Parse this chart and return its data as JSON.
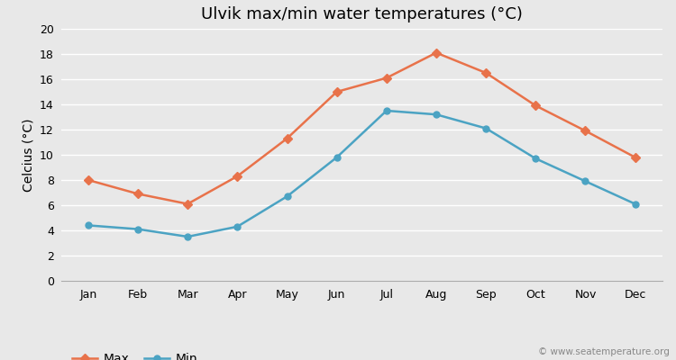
{
  "title": "Ulvik max/min water temperatures (°C)",
  "xlabel": "",
  "ylabel": "Celcius (°C)",
  "months": [
    "Jan",
    "Feb",
    "Mar",
    "Apr",
    "May",
    "Jun",
    "Jul",
    "Aug",
    "Sep",
    "Oct",
    "Nov",
    "Dec"
  ],
  "max_values": [
    8.0,
    6.9,
    6.1,
    8.3,
    11.3,
    15.0,
    16.1,
    18.1,
    16.5,
    13.9,
    11.9,
    9.8
  ],
  "min_values": [
    4.4,
    4.1,
    3.5,
    4.3,
    6.7,
    9.8,
    13.5,
    13.2,
    12.1,
    9.7,
    7.9,
    6.1
  ],
  "max_color": "#E8724A",
  "min_color": "#4BA3C3",
  "ylim": [
    0,
    20
  ],
  "yticks": [
    0,
    2,
    4,
    6,
    8,
    10,
    12,
    14,
    16,
    18,
    20
  ],
  "bg_color": "#E8E8E8",
  "grid_color": "#FFFFFF",
  "watermark": "© www.seatemperature.org",
  "title_fontsize": 13,
  "axis_label_fontsize": 10,
  "tick_fontsize": 9,
  "legend_fontsize": 10,
  "max_marker": "D",
  "min_marker": "o",
  "linewidth": 1.8,
  "markersize": 5
}
